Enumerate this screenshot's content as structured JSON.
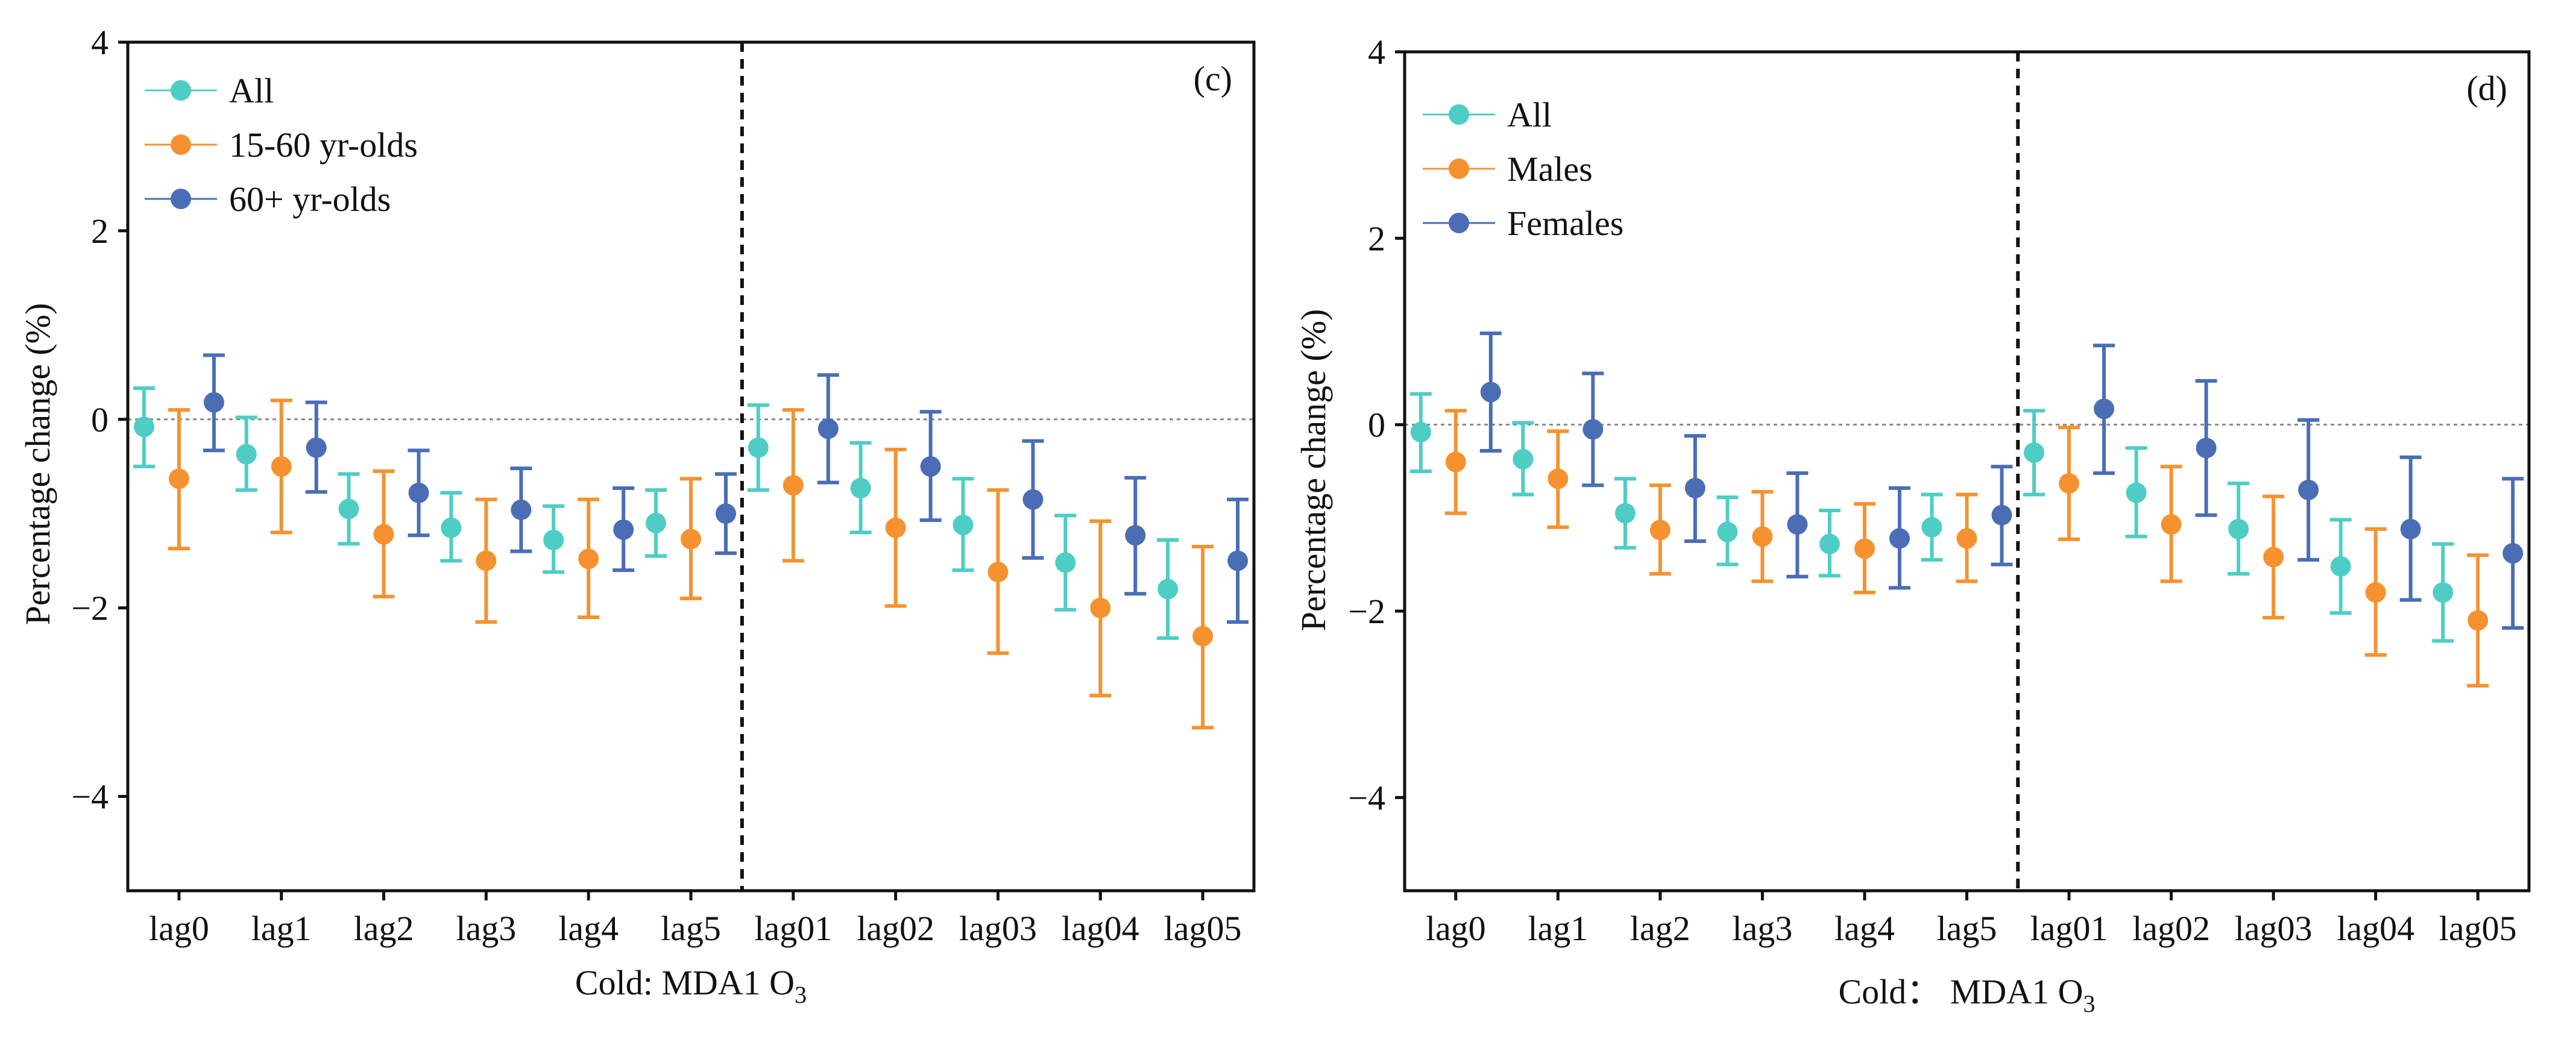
{
  "chart_data": [
    {
      "type": "errorbar-scatter",
      "panel_label": "(c)",
      "xlabel_main": "Cold: MDA1 O",
      "xlabel_subscript": "3",
      "ylabel": "Percentage change (%)",
      "ylim": [
        -5,
        4
      ],
      "yticks": [
        4,
        2,
        0,
        -2,
        -4
      ],
      "ytick_labels": [
        "4",
        "2",
        "0",
        "−2",
        "−4"
      ],
      "categories": [
        "lag0",
        "lag1",
        "lag2",
        "lag3",
        "lag4",
        "lag5",
        "lag01",
        "lag02",
        "lag03",
        "lag04",
        "lag05"
      ],
      "separator_after_index": 5,
      "reference_line": 0,
      "legend_position": "top-left",
      "series": [
        {
          "name": "All",
          "color": "#4ecdc4",
          "values": [
            -0.08,
            -0.37,
            -0.95,
            -1.15,
            -1.28,
            -1.1,
            -0.3,
            -0.73,
            -1.12,
            -1.52,
            -1.8
          ],
          "lower": [
            -0.5,
            -0.75,
            -1.32,
            -1.5,
            -1.62,
            -1.45,
            -0.75,
            -1.2,
            -1.6,
            -2.02,
            -2.32
          ],
          "upper": [
            0.33,
            0.02,
            -0.58,
            -0.78,
            -0.92,
            -0.75,
            0.15,
            -0.25,
            -0.63,
            -1.02,
            -1.28
          ]
        },
        {
          "name": "15-60 yr-olds",
          "color": "#f5922f",
          "values": [
            -0.63,
            -0.5,
            -1.22,
            -1.5,
            -1.48,
            -1.27,
            -0.7,
            -1.15,
            -1.62,
            -2.0,
            -2.3
          ],
          "lower": [
            -1.37,
            -1.2,
            -1.88,
            -2.15,
            -2.1,
            -1.9,
            -1.5,
            -1.98,
            -2.48,
            -2.93,
            -3.27
          ],
          "upper": [
            0.1,
            0.2,
            -0.55,
            -0.85,
            -0.85,
            -0.63,
            0.1,
            -0.32,
            -0.75,
            -1.08,
            -1.35
          ]
        },
        {
          "name": "60+ yr-olds",
          "color": "#4a6db5",
          "values": [
            0.18,
            -0.3,
            -0.78,
            -0.96,
            -1.17,
            -1.0,
            -0.1,
            -0.5,
            -0.85,
            -1.23,
            -1.5
          ],
          "lower": [
            -0.33,
            -0.77,
            -1.23,
            -1.4,
            -1.6,
            -1.42,
            -0.67,
            -1.07,
            -1.47,
            -1.85,
            -2.15
          ],
          "upper": [
            0.68,
            0.18,
            -0.33,
            -0.52,
            -0.73,
            -0.58,
            0.47,
            0.08,
            -0.23,
            -0.62,
            -0.85
          ]
        }
      ]
    },
    {
      "type": "errorbar-scatter",
      "panel_label": "(d)",
      "xlabel_main": "Cold： MDA1 O",
      "xlabel_subscript": "3",
      "ylabel": "Percentage change (%)",
      "ylim": [
        -5,
        4
      ],
      "yticks": [
        4,
        2,
        0,
        -2,
        -4
      ],
      "ytick_labels": [
        "4",
        "2",
        "0",
        "−2",
        "−4"
      ],
      "categories": [
        "lag0",
        "lag1",
        "lag2",
        "lag3",
        "lag4",
        "lag5",
        "lag01",
        "lag02",
        "lag03",
        "lag04",
        "lag05"
      ],
      "separator_after_index": 5,
      "reference_line": 0,
      "legend_position": "top-left",
      "series": [
        {
          "name": "All",
          "color": "#4ecdc4",
          "values": [
            -0.08,
            -0.37,
            -0.95,
            -1.15,
            -1.28,
            -1.1,
            -0.3,
            -0.73,
            -1.12,
            -1.52,
            -1.8
          ],
          "lower": [
            -0.5,
            -0.75,
            -1.32,
            -1.5,
            -1.62,
            -1.45,
            -0.75,
            -1.2,
            -1.6,
            -2.02,
            -2.32
          ],
          "upper": [
            0.33,
            0.02,
            -0.58,
            -0.78,
            -0.92,
            -0.75,
            0.15,
            -0.25,
            -0.63,
            -1.02,
            -1.28
          ]
        },
        {
          "name": "Males",
          "color": "#f5922f",
          "values": [
            -0.4,
            -0.58,
            -1.13,
            -1.2,
            -1.33,
            -1.22,
            -0.63,
            -1.07,
            -1.42,
            -1.8,
            -2.1
          ],
          "lower": [
            -0.95,
            -1.1,
            -1.6,
            -1.68,
            -1.8,
            -1.68,
            -1.23,
            -1.68,
            -2.07,
            -2.47,
            -2.8
          ],
          "upper": [
            0.15,
            -0.07,
            -0.65,
            -0.72,
            -0.85,
            -0.75,
            -0.03,
            -0.45,
            -0.77,
            -1.12,
            -1.4
          ]
        },
        {
          "name": "Females",
          "color": "#4a6db5",
          "values": [
            0.35,
            -0.05,
            -0.68,
            -1.07,
            -1.22,
            -0.97,
            0.17,
            -0.25,
            -0.7,
            -1.12,
            -1.38
          ],
          "lower": [
            -0.28,
            -0.65,
            -1.25,
            -1.63,
            -1.75,
            -1.5,
            -0.52,
            -0.97,
            -1.45,
            -1.88,
            -2.18
          ],
          "upper": [
            0.98,
            0.55,
            -0.12,
            -0.52,
            -0.68,
            -0.45,
            0.85,
            0.47,
            0.05,
            -0.35,
            -0.58
          ]
        }
      ]
    }
  ]
}
